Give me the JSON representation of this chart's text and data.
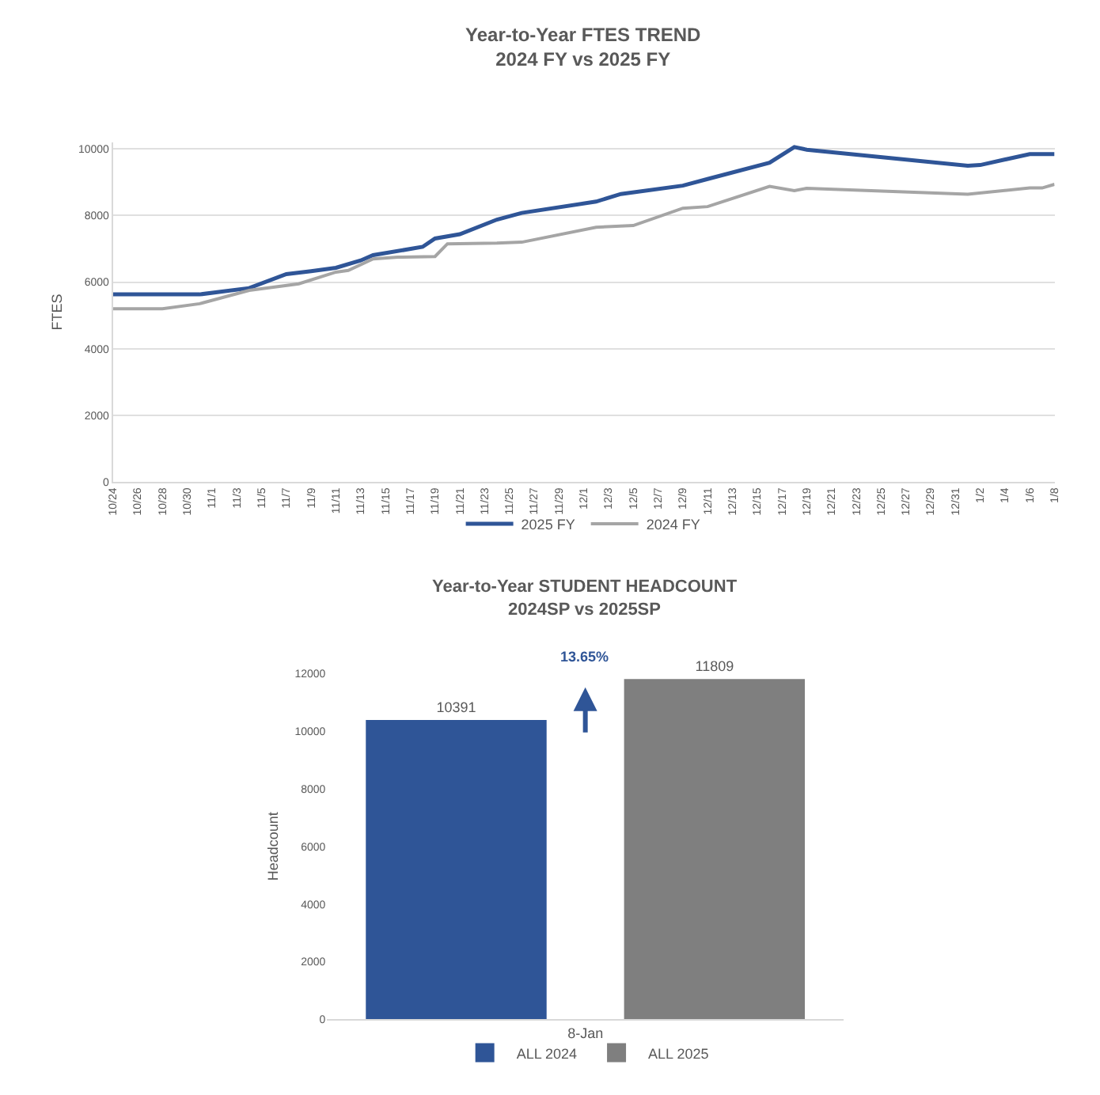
{
  "chart_data": [
    {
      "type": "line",
      "title": "Year-to-Year FTES TREND",
      "subtitle": "2024 FY vs 2025 FY",
      "ylabel": "FTES",
      "xlim": [
        "2024-10-24",
        "2025-01-08"
      ],
      "xticks": [
        {
          "value": "2024-10-24",
          "label": "10/24"
        },
        {
          "value": "2024-10-26",
          "label": "10/26"
        },
        {
          "value": "2024-10-28",
          "label": "10/28"
        },
        {
          "value": "2024-10-30",
          "label": "10/30"
        },
        {
          "value": "2024-11-01",
          "label": "11/1"
        },
        {
          "value": "2024-11-03",
          "label": "11/3"
        },
        {
          "value": "2024-11-05",
          "label": "11/5"
        },
        {
          "value": "2024-11-07",
          "label": "11/7"
        },
        {
          "value": "2024-11-09",
          "label": "11/9"
        },
        {
          "value": "2024-11-11",
          "label": "11/11"
        },
        {
          "value": "2024-11-13",
          "label": "11/13"
        },
        {
          "value": "2024-11-15",
          "label": "11/15"
        },
        {
          "value": "2024-11-17",
          "label": "11/17"
        },
        {
          "value": "2024-11-19",
          "label": "11/19"
        },
        {
          "value": "2024-11-21",
          "label": "11/21"
        },
        {
          "value": "2024-11-23",
          "label": "11/23"
        },
        {
          "value": "2024-11-25",
          "label": "11/25"
        },
        {
          "value": "2024-11-27",
          "label": "11/27"
        },
        {
          "value": "2024-11-29",
          "label": "11/29"
        },
        {
          "value": "2024-12-01",
          "label": "12/1"
        },
        {
          "value": "2024-12-03",
          "label": "12/3"
        },
        {
          "value": "2024-12-05",
          "label": "12/5"
        },
        {
          "value": "2024-12-07",
          "label": "12/7"
        },
        {
          "value": "2024-12-09",
          "label": "12/9"
        },
        {
          "value": "2024-12-11",
          "label": "12/11"
        },
        {
          "value": "2024-12-13",
          "label": "12/13"
        },
        {
          "value": "2024-12-15",
          "label": "12/15"
        },
        {
          "value": "2024-12-17",
          "label": "12/17"
        },
        {
          "value": "2024-12-19",
          "label": "12/19"
        },
        {
          "value": "2024-12-21",
          "label": "12/21"
        },
        {
          "value": "2024-12-23",
          "label": "12/23"
        },
        {
          "value": "2024-12-25",
          "label": "12/25"
        },
        {
          "value": "2024-12-27",
          "label": "12/27"
        },
        {
          "value": "2024-12-29",
          "label": "12/29"
        },
        {
          "value": "2024-12-31",
          "label": "12/31"
        },
        {
          "value": "2025-01-02",
          "label": "1/2"
        },
        {
          "value": "2025-01-04",
          "label": "1/4"
        },
        {
          "value": "2025-01-06",
          "label": "1/6"
        },
        {
          "value": "2025-01-08",
          "label": "1/8"
        }
      ],
      "ylim": [
        0,
        10200
      ],
      "yticks": [
        0,
        2000,
        4000,
        6000,
        8000,
        10000
      ],
      "grid": "y",
      "legend": "bottom",
      "series": [
        {
          "name": "2025 FY",
          "color": "#2f5597",
          "x": [
            "2024-10-24",
            "2024-10-31",
            "2024-11-04",
            "2024-11-07",
            "2024-11-09",
            "2024-11-11",
            "2024-11-13",
            "2024-11-14",
            "2024-11-18",
            "2024-11-19",
            "2024-11-21",
            "2024-11-24",
            "2024-11-26",
            "2024-12-02",
            "2024-12-04",
            "2024-12-09",
            "2024-12-11",
            "2024-12-16",
            "2024-12-18",
            "2024-12-19",
            "2025-01-01",
            "2025-01-02",
            "2025-01-06",
            "2025-01-08"
          ],
          "values": [
            5630,
            5630,
            5820,
            6240,
            6330,
            6430,
            6650,
            6810,
            7060,
            7310,
            7440,
            7880,
            8080,
            8420,
            8650,
            8900,
            9100,
            9590,
            10060,
            9980,
            9500,
            9520,
            9850,
            9850
          ]
        },
        {
          "name": "2024 FY",
          "color": "#a5a5a5",
          "x": [
            "2024-10-24",
            "2024-10-28",
            "2024-10-31",
            "2024-11-04",
            "2024-11-08",
            "2024-11-11",
            "2024-11-12",
            "2024-11-14",
            "2024-11-16",
            "2024-11-19",
            "2024-11-20",
            "2024-11-24",
            "2024-11-26",
            "2024-12-02",
            "2024-12-05",
            "2024-12-09",
            "2024-12-11",
            "2024-12-16",
            "2024-12-18",
            "2024-12-19",
            "2025-01-01",
            "2025-01-06",
            "2025-01-07",
            "2025-01-08"
          ],
          "values": [
            5200,
            5200,
            5350,
            5750,
            5950,
            6300,
            6350,
            6700,
            6750,
            6770,
            7150,
            7170,
            7200,
            7650,
            7700,
            8220,
            8270,
            8880,
            8750,
            8820,
            8640,
            8830,
            8830,
            8940
          ]
        }
      ]
    },
    {
      "type": "bar",
      "title": "Year-to-Year STUDENT HEADCOUNT",
      "subtitle": "2024SP vs 2025SP",
      "ylabel": "Headcount",
      "categories": [
        "8-Jan"
      ],
      "ylim": [
        0,
        12000
      ],
      "yticks": [
        0,
        2000,
        4000,
        6000,
        8000,
        10000,
        12000
      ],
      "grid": false,
      "legend": "bottom",
      "data_labels": true,
      "annotations": [
        "13.65%"
      ],
      "series": [
        {
          "name": "ALL 2024",
          "color": "#2f5597",
          "values": [
            10391
          ]
        },
        {
          "name": "ALL 2025",
          "color": "#7f7f7f",
          "values": [
            11809
          ]
        }
      ]
    }
  ]
}
